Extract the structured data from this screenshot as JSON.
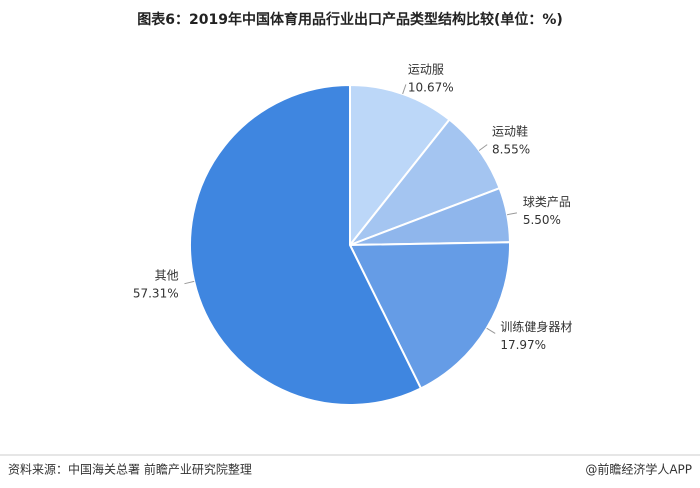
{
  "chart_data": {
    "type": "pie",
    "title": "图表6：2019年中国体育用品行业出口产品类型结构比较(单位：%)",
    "categories": [
      "运动服",
      "运动鞋",
      "球类产品",
      "训练健身器材",
      "其他"
    ],
    "values": [
      10.67,
      8.55,
      5.5,
      17.97,
      57.31
    ],
    "value_labels": [
      "10.67%",
      "8.55%",
      "5.50%",
      "17.97%",
      "57.31%"
    ],
    "colors": [
      "#bcd7f8",
      "#a4c5f1",
      "#8fb6ec",
      "#659ce6",
      "#3f86e0"
    ],
    "source": "资料来源：中国海关总署 前瞻产业研究院整理",
    "credit": "@前瞻经济学人APP"
  }
}
